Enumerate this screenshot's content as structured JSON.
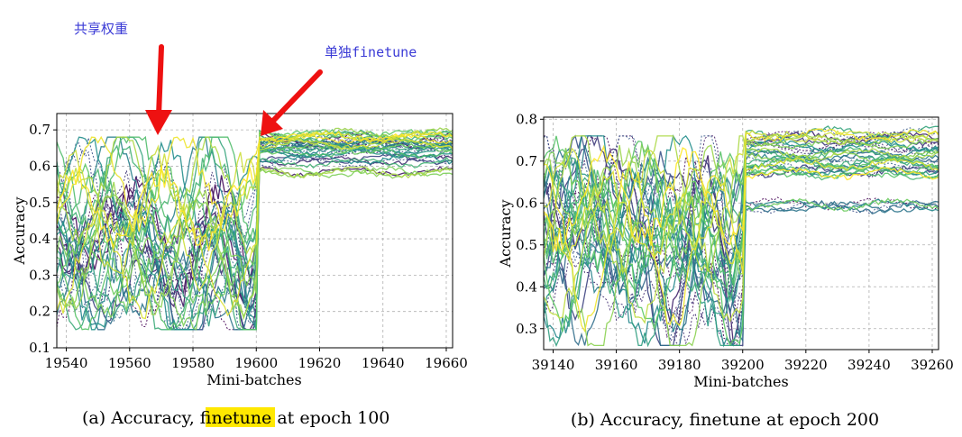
{
  "annotations": {
    "shared_weights": "共享权重",
    "separate_finetune": "单独finetune"
  },
  "colors": {
    "annotation_text": "#3b3bd6",
    "arrow": "#ee1111",
    "highlight": "#ffe800",
    "grid": "#b0b0b0"
  },
  "chart_data": [
    {
      "type": "line",
      "title": "",
      "xlabel": "Mini-batches",
      "ylabel": "Accuracy",
      "xlim": [
        19537,
        19662
      ],
      "ylim": [
        0.1,
        0.745
      ],
      "xticks": [
        19540,
        19560,
        19580,
        19600,
        19620,
        19640,
        19660
      ],
      "yticks": [
        0.1,
        0.2,
        0.3,
        0.4,
        0.5,
        0.6,
        0.7
      ],
      "xtick_labels": [
        "19540",
        "19560",
        "19580",
        "19600",
        "19620",
        "19640",
        "19660"
      ],
      "ytick_labels": [
        "0.1",
        "0.2",
        "0.3",
        "0.4",
        "0.5",
        "0.6",
        "0.7"
      ],
      "grid": true,
      "colormap": "viridis",
      "switch_x": 19600,
      "before_range": [
        0.15,
        0.68
      ],
      "after_levels": [
        0.59,
        0.62,
        0.64,
        0.65,
        0.66,
        0.67,
        0.68,
        0.69
      ],
      "series_count": 40,
      "caption_prefix": "(a) Accuracy, ",
      "caption_highlight": "finetune",
      "caption_suffix": " at epoch 100"
    },
    {
      "type": "line",
      "title": "",
      "xlabel": "Mini-batches",
      "ylabel": "Accuracy",
      "xlim": [
        39137,
        39262
      ],
      "ylim": [
        0.25,
        0.805
      ],
      "xticks": [
        39140,
        39160,
        39180,
        39200,
        39220,
        39240,
        39260
      ],
      "yticks": [
        0.3,
        0.4,
        0.5,
        0.6,
        0.7,
        0.8
      ],
      "xtick_labels": [
        "39140",
        "39160",
        "39180",
        "39200",
        "39220",
        "39240",
        "39260"
      ],
      "ytick_labels": [
        "0.3",
        "0.4",
        "0.5",
        "0.6",
        "0.7",
        "0.8"
      ],
      "grid": true,
      "colormap": "viridis",
      "switch_x": 39200,
      "before_range": [
        0.26,
        0.76
      ],
      "after_levels": [
        0.6,
        0.68,
        0.7,
        0.72,
        0.74,
        0.75,
        0.76,
        0.77
      ],
      "series_count": 40,
      "caption": "(b) Accuracy, finetune at epoch 200"
    }
  ]
}
